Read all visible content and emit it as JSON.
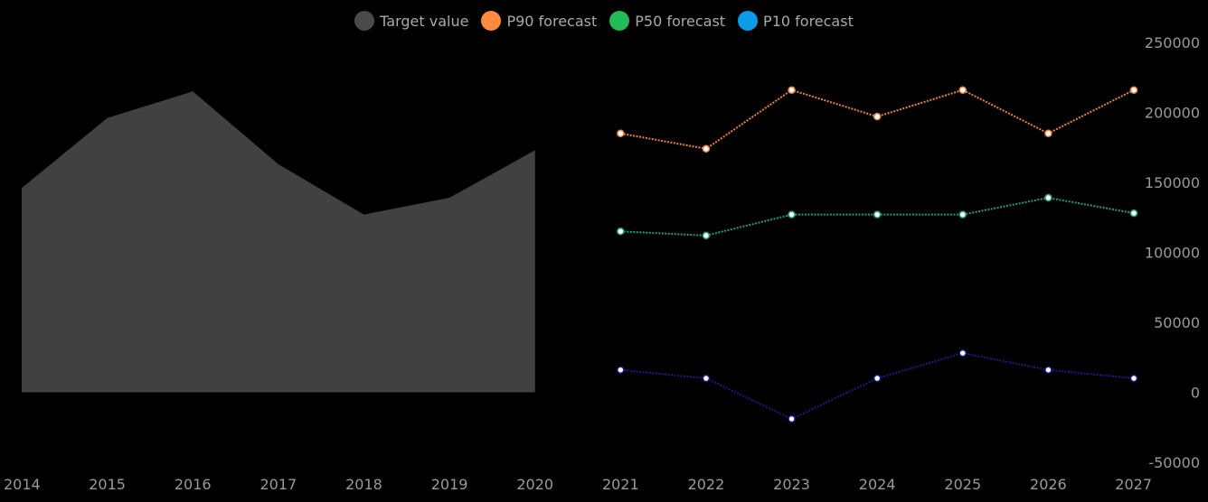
{
  "chart_data": {
    "type": "line",
    "x": [
      2014,
      2015,
      2016,
      2017,
      2018,
      2019,
      2020,
      2021,
      2022,
      2023,
      2024,
      2025,
      2026,
      2027
    ],
    "x_tick_labels": [
      "2014",
      "2015",
      "2016",
      "2017",
      "2018",
      "2019",
      "2020",
      "2021",
      "2022",
      "2023",
      "2024",
      "2025",
      "2026",
      "2027"
    ],
    "ylim": [
      -50000,
      250000
    ],
    "y_ticks": [
      -50000,
      0,
      50000,
      100000,
      150000,
      200000,
      250000
    ],
    "y_tick_labels": [
      "-50000",
      "0",
      "50000",
      "100000",
      "150000",
      "200000",
      "250000"
    ],
    "legend_position": "top-center",
    "series": [
      {
        "name": "Target value",
        "kind": "area",
        "color": "#414141",
        "legend_color": "#4a4a4a",
        "x": [
          2014,
          2015,
          2016,
          2017,
          2018,
          2019,
          2020
        ],
        "values": [
          146000,
          196000,
          215000,
          163000,
          127000,
          139000,
          173000
        ]
      },
      {
        "name": "P90 forecast",
        "kind": "line",
        "color": "#f0803a",
        "legend_color": "#ff8a3d",
        "x": [
          2021,
          2022,
          2023,
          2024,
          2025,
          2026,
          2027
        ],
        "values": [
          185000,
          174000,
          216000,
          197000,
          216000,
          185000,
          216000
        ]
      },
      {
        "name": "P50 forecast",
        "kind": "line",
        "color": "#1e9e7e",
        "legend_color": "#22bb55",
        "x": [
          2021,
          2022,
          2023,
          2024,
          2025,
          2026,
          2027
        ],
        "values": [
          115000,
          112000,
          127000,
          127000,
          127000,
          139000,
          128000
        ]
      },
      {
        "name": "P10 forecast",
        "kind": "line",
        "color": "#1a1a8c",
        "legend_color": "#0a9ce8",
        "x": [
          2021,
          2022,
          2023,
          2024,
          2025,
          2026,
          2027
        ],
        "values": [
          16000,
          10000,
          -19000,
          10000,
          28000,
          16000,
          10000
        ]
      }
    ]
  }
}
